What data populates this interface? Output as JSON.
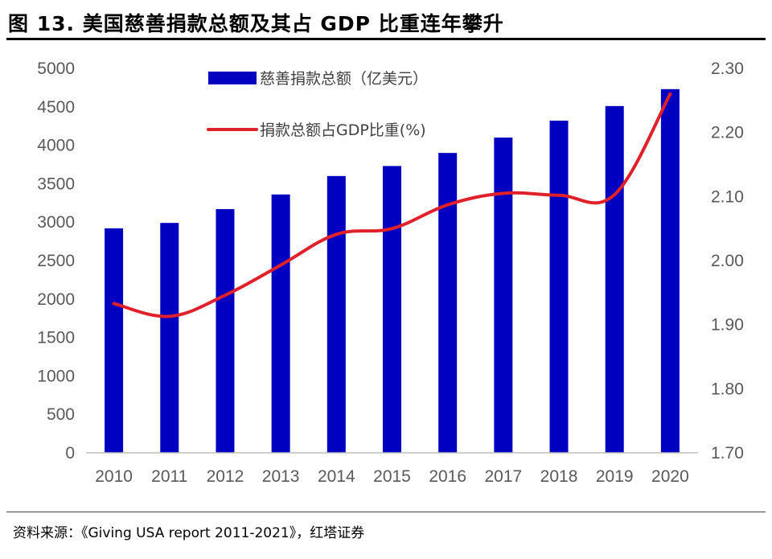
{
  "header": {
    "title": "图 13. 美国慈善捐款总额及其占 GDP 比重连年攀升"
  },
  "footer": {
    "source": "资料来源：《Giving USA report 2011-2021》，红塔证券"
  },
  "colors": {
    "bar": "#0000c0",
    "line": "#e0202a"
  },
  "chart_data": {
    "type": "bar",
    "categories": [
      "2010",
      "2011",
      "2012",
      "2013",
      "2014",
      "2015",
      "2016",
      "2017",
      "2018",
      "2019",
      "2020"
    ],
    "series": [
      {
        "name": "慈善捐款总额（亿美元）",
        "type": "bar",
        "axis": "left",
        "values": [
          2920,
          2990,
          3170,
          3360,
          3600,
          3730,
          3900,
          4100,
          4320,
          4510,
          4730
        ]
      },
      {
        "name": "捐款总额占GDP比重(%)",
        "type": "line",
        "axis": "right",
        "values": [
          1.933,
          1.913,
          1.946,
          1.993,
          2.041,
          2.05,
          2.087,
          2.105,
          2.102,
          2.103,
          2.26
        ]
      }
    ],
    "y_left": {
      "ylim": [
        0,
        5000
      ],
      "ticks": [
        "0",
        "500",
        "1000",
        "1500",
        "2000",
        "2500",
        "3000",
        "3500",
        "4000",
        "4500",
        "5000"
      ]
    },
    "y_right": {
      "ylim": [
        1.7,
        2.3
      ],
      "ticks": [
        "1.70",
        "1.80",
        "1.90",
        "2.00",
        "2.10",
        "2.20",
        "2.30"
      ]
    },
    "grid": false,
    "legend": "top-left"
  }
}
